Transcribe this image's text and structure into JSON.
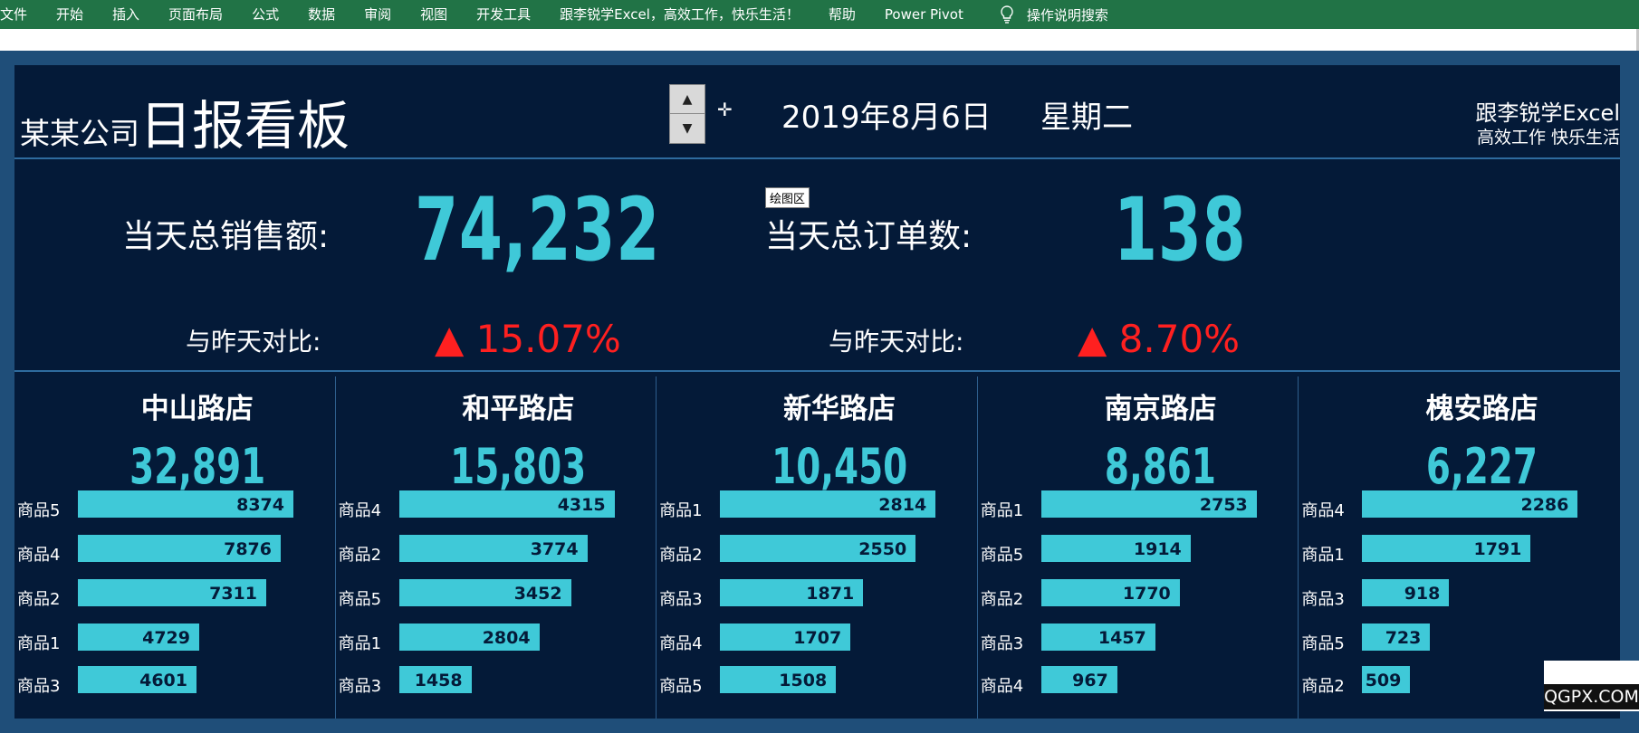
{
  "ribbon": {
    "tabs": [
      "文件",
      "开始",
      "插入",
      "页面布局",
      "公式",
      "数据",
      "审阅",
      "视图",
      "开发工具",
      "跟李锐学Excel，高效工作，快乐生活！",
      "帮助",
      "Power Pivot"
    ],
    "search_label": "操作说明搜索"
  },
  "header": {
    "company": "某某公司",
    "title": "日报看板",
    "date": "2019年8月6日",
    "weekday": "星期二",
    "brand_line1": "跟李锐学Excel",
    "brand_line2": "高效工作 快乐生活"
  },
  "tooltip": "绘图区",
  "kpi": {
    "sales_label": "当天总销售额:",
    "sales_value": "74,232",
    "sales_cmp_label": "与昨天对比:",
    "sales_cmp_value": "▲ 15.07%",
    "orders_label": "当天总订单数:",
    "orders_value": "138",
    "orders_cmp_label": "与昨天对比:",
    "orders_cmp_value": "▲ 8.70%"
  },
  "colors": {
    "accent": "#3fc9d8",
    "background": "#041a38",
    "frame": "#1f4e79",
    "up": "#ff2020",
    "ribbon": "#217346"
  },
  "stores": [
    {
      "name": "中山路店",
      "total": "32,891",
      "items": [
        {
          "label": "商品5",
          "value": 8374
        },
        {
          "label": "商品4",
          "value": 7876
        },
        {
          "label": "商品2",
          "value": 7311
        },
        {
          "label": "商品1",
          "value": 4729
        },
        {
          "label": "商品3",
          "value": 4601
        }
      ]
    },
    {
      "name": "和平路店",
      "total": "15,803",
      "items": [
        {
          "label": "商品4",
          "value": 4315
        },
        {
          "label": "商品2",
          "value": 3774
        },
        {
          "label": "商品5",
          "value": 3452
        },
        {
          "label": "商品1",
          "value": 2804
        },
        {
          "label": "商品3",
          "value": 1458
        }
      ]
    },
    {
      "name": "新华路店",
      "total": "10,450",
      "items": [
        {
          "label": "商品1",
          "value": 2814
        },
        {
          "label": "商品2",
          "value": 2550
        },
        {
          "label": "商品3",
          "value": 1871
        },
        {
          "label": "商品4",
          "value": 1707
        },
        {
          "label": "商品5",
          "value": 1508
        }
      ]
    },
    {
      "name": "南京路店",
      "total": "8,861",
      "items": [
        {
          "label": "商品1",
          "value": 2753
        },
        {
          "label": "商品5",
          "value": 1914
        },
        {
          "label": "商品2",
          "value": 1770
        },
        {
          "label": "商品3",
          "value": 1457
        },
        {
          "label": "商品4",
          "value": 967
        }
      ]
    },
    {
      "name": "槐安路店",
      "total": "6,227",
      "items": [
        {
          "label": "商品4",
          "value": 2286
        },
        {
          "label": "商品1",
          "value": 1791
        },
        {
          "label": "商品3",
          "value": 918
        },
        {
          "label": "商品5",
          "value": 723
        },
        {
          "label": "商品2",
          "value": 509
        }
      ]
    }
  ],
  "watermark": "QGPX.COM"
}
